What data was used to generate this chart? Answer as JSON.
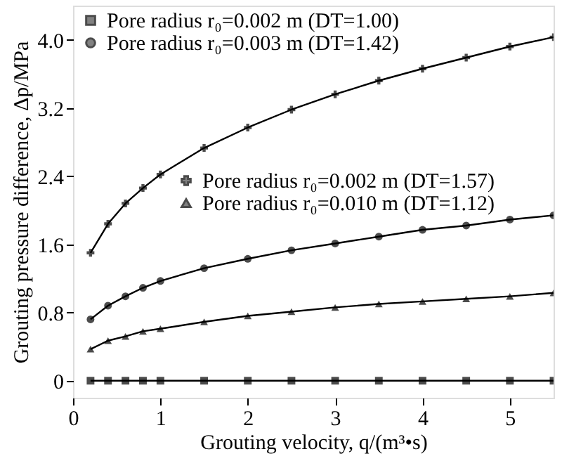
{
  "chart_data": {
    "type": "line",
    "xlabel": "Grouting velocity, q/(m³•s)",
    "ylabel": "Grouting pressure difference, Δp/MPa",
    "x": [
      0.2,
      0.4,
      0.6,
      0.8,
      1,
      1.5,
      2,
      2.5,
      3,
      3.5,
      4,
      4.5,
      5,
      5.5
    ],
    "series": [
      {
        "name": "Pore radius r₀=0.002 m (DT=1.00)",
        "color": "#000000",
        "marker": "square",
        "values": [
          0,
          0,
          0,
          0,
          0,
          0,
          0,
          0,
          0,
          0,
          0,
          0,
          0,
          0
        ]
      },
      {
        "name": "Pore radius r₀=0.003 m (DT=1.42)",
        "color": "#000000",
        "marker": "circle",
        "values": [
          0.72,
          0.88,
          0.99,
          1.09,
          1.17,
          1.32,
          1.43,
          1.53,
          1.61,
          1.69,
          1.77,
          1.82,
          1.89,
          1.94
        ]
      },
      {
        "name": "Pore radius r₀=0.002 m (DT=1.57)",
        "color": "#000000",
        "marker": "cross",
        "values": [
          1.5,
          1.84,
          2.08,
          2.26,
          2.42,
          2.73,
          2.97,
          3.18,
          3.36,
          3.52,
          3.66,
          3.79,
          3.92,
          4.03
        ]
      },
      {
        "name": "Pore radius r₀=0.010 m (DT=1.12)",
        "color": "#000000",
        "marker": "triangle",
        "values": [
          0.37,
          0.47,
          0.52,
          0.58,
          0.61,
          0.69,
          0.76,
          0.81,
          0.86,
          0.9,
          0.93,
          0.96,
          0.99,
          1.03
        ]
      }
    ],
    "xlim": [
      0,
      5.5
    ],
    "xticks": [
      0,
      1,
      2,
      3,
      4,
      5
    ],
    "ylim": [
      -0.2,
      4.4
    ],
    "yticks": [
      0,
      0.8,
      1.6,
      2.4,
      3.2,
      {
        "value": 4,
        "label": "4.0"
      }
    ],
    "legend": "top left",
    "grid": false,
    "line_style": "solid"
  }
}
